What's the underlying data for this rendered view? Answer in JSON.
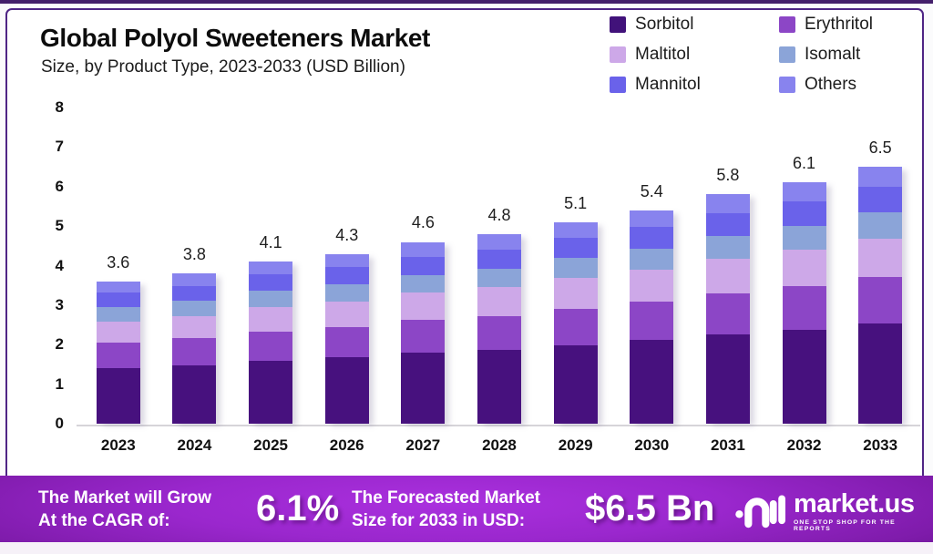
{
  "header": {
    "title": "Global Polyol Sweeteners Market",
    "subtitle": "Size, by Product Type, 2023-2033 (USD Billion)"
  },
  "legend": {
    "items": [
      {
        "label": "Sorbitol",
        "color": "#41127a"
      },
      {
        "label": "Erythritol",
        "color": "#8c46c6"
      },
      {
        "label": "Maltitol",
        "color": "#cda8e8"
      },
      {
        "label": "Isomalt",
        "color": "#8ba4d8"
      },
      {
        "label": "Mannitol",
        "color": "#6a62ea"
      },
      {
        "label": "Others",
        "color": "#8883ee"
      }
    ]
  },
  "chart_data": {
    "type": "bar",
    "stacked": true,
    "title": "Global Polyol Sweeteners Market Size, by Product Type, 2023-2033 (USD Billion)",
    "categories": [
      "2023",
      "2024",
      "2025",
      "2026",
      "2027",
      "2028",
      "2029",
      "2030",
      "2031",
      "2032",
      "2033"
    ],
    "series": [
      {
        "name": "Sorbitol",
        "color": "#47117e",
        "values": [
          1.4,
          1.48,
          1.6,
          1.68,
          1.79,
          1.87,
          1.99,
          2.11,
          2.26,
          2.38,
          2.54
        ]
      },
      {
        "name": "Erythritol",
        "color": "#8c46c6",
        "values": [
          0.65,
          0.68,
          0.74,
          0.77,
          0.83,
          0.86,
          0.92,
          0.97,
          1.04,
          1.1,
          1.17
        ]
      },
      {
        "name": "Maltitol",
        "color": "#cda8e8",
        "values": [
          0.54,
          0.57,
          0.62,
          0.65,
          0.69,
          0.72,
          0.77,
          0.81,
          0.87,
          0.92,
          0.98
        ]
      },
      {
        "name": "Isomalt",
        "color": "#8ba4d8",
        "values": [
          0.36,
          0.38,
          0.41,
          0.43,
          0.46,
          0.48,
          0.51,
          0.54,
          0.58,
          0.61,
          0.65
        ]
      },
      {
        "name": "Mannitol",
        "color": "#6a62ea",
        "values": [
          0.36,
          0.38,
          0.41,
          0.43,
          0.46,
          0.48,
          0.51,
          0.54,
          0.58,
          0.61,
          0.65
        ]
      },
      {
        "name": "Others",
        "color": "#8883ee",
        "values": [
          0.29,
          0.31,
          0.32,
          0.34,
          0.37,
          0.39,
          0.4,
          0.43,
          0.47,
          0.48,
          0.51
        ]
      }
    ],
    "totals": [
      3.6,
      3.8,
      4.1,
      4.3,
      4.6,
      4.8,
      5.1,
      5.4,
      5.8,
      6.1,
      6.5
    ],
    "total_labels": [
      "3.6",
      "3.8",
      "4.1",
      "4.3",
      "4.6",
      "4.8",
      "5.1",
      "5.4",
      "5.8",
      "6.1",
      "6.5"
    ],
    "ylim": [
      0,
      8
    ],
    "yticks": [
      0,
      1,
      2,
      3,
      4,
      5,
      6,
      7,
      8
    ],
    "grid": false,
    "legend_position": "top-right"
  },
  "banner": {
    "cagr_line1": "The Market will Grow",
    "cagr_line2": "At the CAGR of:",
    "cagr_value": "6.1%",
    "forecast_line1": "The Forecasted Market",
    "forecast_line2": "Size for 2033 in USD:",
    "forecast_value": "$6.5 Bn",
    "logo": {
      "name": "market.us",
      "tagline": "ONE STOP SHOP FOR THE REPORTS"
    }
  },
  "colors": {
    "top_rule": "#44206b",
    "frame_border": "#4f2585",
    "banner_center": "#a52bd8",
    "banner_edge": "#5a1080"
  }
}
